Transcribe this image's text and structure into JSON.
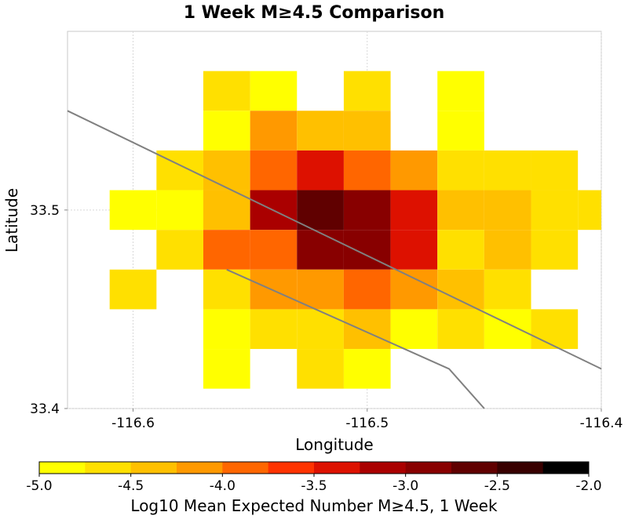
{
  "chart_data": {
    "type": "heatmap",
    "title": "1 Week M≥4.5 Comparison",
    "xlabel": "Longitude",
    "ylabel": "Latitude",
    "xlim": [
      -116.628,
      -116.4
    ],
    "ylim": [
      33.4,
      33.59
    ],
    "x_ticks": [
      {
        "value": -116.6,
        "label": "-116.6"
      },
      {
        "value": -116.5,
        "label": "-116.5"
      },
      {
        "value": -116.4,
        "label": "-116.4"
      }
    ],
    "y_ticks": [
      {
        "value": 33.5,
        "label": "33.5"
      },
      {
        "value": 33.4,
        "label": "33.4"
      }
    ],
    "grid": true,
    "cell_size": 0.02,
    "cells": [
      {
        "lon": -116.56,
        "lat": 33.56,
        "value": -4.6
      },
      {
        "lon": -116.54,
        "lat": 33.56,
        "value": -4.9
      },
      {
        "lon": -116.5,
        "lat": 33.56,
        "value": -4.6
      },
      {
        "lon": -116.46,
        "lat": 33.56,
        "value": -4.9
      },
      {
        "lon": -116.56,
        "lat": 33.54,
        "value": -4.9
      },
      {
        "lon": -116.54,
        "lat": 33.54,
        "value": -4.2
      },
      {
        "lon": -116.52,
        "lat": 33.54,
        "value": -4.4
      },
      {
        "lon": -116.5,
        "lat": 33.54,
        "value": -4.4
      },
      {
        "lon": -116.46,
        "lat": 33.54,
        "value": -4.9
      },
      {
        "lon": -116.58,
        "lat": 33.52,
        "value": -4.6
      },
      {
        "lon": -116.56,
        "lat": 33.52,
        "value": -4.4
      },
      {
        "lon": -116.54,
        "lat": 33.52,
        "value": -3.8
      },
      {
        "lon": -116.52,
        "lat": 33.52,
        "value": -3.4
      },
      {
        "lon": -116.5,
        "lat": 33.52,
        "value": -3.8
      },
      {
        "lon": -116.48,
        "lat": 33.52,
        "value": -4.2
      },
      {
        "lon": -116.46,
        "lat": 33.52,
        "value": -4.6
      },
      {
        "lon": -116.44,
        "lat": 33.52,
        "value": -4.6
      },
      {
        "lon": -116.42,
        "lat": 33.52,
        "value": -4.6
      },
      {
        "lon": -116.6,
        "lat": 33.5,
        "value": -4.9
      },
      {
        "lon": -116.58,
        "lat": 33.5,
        "value": -4.9
      },
      {
        "lon": -116.56,
        "lat": 33.5,
        "value": -4.4
      },
      {
        "lon": -116.54,
        "lat": 33.5,
        "value": -3.2
      },
      {
        "lon": -116.52,
        "lat": 33.5,
        "value": -2.6
      },
      {
        "lon": -116.5,
        "lat": 33.5,
        "value": -2.8
      },
      {
        "lon": -116.48,
        "lat": 33.5,
        "value": -3.4
      },
      {
        "lon": -116.46,
        "lat": 33.5,
        "value": -4.4
      },
      {
        "lon": -116.44,
        "lat": 33.5,
        "value": -4.4
      },
      {
        "lon": -116.42,
        "lat": 33.5,
        "value": -4.6
      },
      {
        "lon": -116.4,
        "lat": 33.5,
        "value": -4.6
      },
      {
        "lon": -116.58,
        "lat": 33.48,
        "value": -4.6
      },
      {
        "lon": -116.56,
        "lat": 33.48,
        "value": -3.8
      },
      {
        "lon": -116.54,
        "lat": 33.48,
        "value": -3.8
      },
      {
        "lon": -116.52,
        "lat": 33.48,
        "value": -3.0
      },
      {
        "lon": -116.5,
        "lat": 33.48,
        "value": -2.8
      },
      {
        "lon": -116.48,
        "lat": 33.48,
        "value": -3.4
      },
      {
        "lon": -116.46,
        "lat": 33.48,
        "value": -4.6
      },
      {
        "lon": -116.44,
        "lat": 33.48,
        "value": -4.4
      },
      {
        "lon": -116.42,
        "lat": 33.48,
        "value": -4.6
      },
      {
        "lon": -116.6,
        "lat": 33.46,
        "value": -4.6
      },
      {
        "lon": -116.56,
        "lat": 33.46,
        "value": -4.6
      },
      {
        "lon": -116.54,
        "lat": 33.46,
        "value": -4.2
      },
      {
        "lon": -116.52,
        "lat": 33.46,
        "value": -4.2
      },
      {
        "lon": -116.5,
        "lat": 33.46,
        "value": -3.8
      },
      {
        "lon": -116.48,
        "lat": 33.46,
        "value": -4.2
      },
      {
        "lon": -116.46,
        "lat": 33.46,
        "value": -4.4
      },
      {
        "lon": -116.44,
        "lat": 33.46,
        "value": -4.6
      },
      {
        "lon": -116.56,
        "lat": 33.44,
        "value": -4.9
      },
      {
        "lon": -116.54,
        "lat": 33.44,
        "value": -4.6
      },
      {
        "lon": -116.52,
        "lat": 33.44,
        "value": -4.6
      },
      {
        "lon": -116.5,
        "lat": 33.44,
        "value": -4.4
      },
      {
        "lon": -116.48,
        "lat": 33.44,
        "value": -4.9
      },
      {
        "lon": -116.46,
        "lat": 33.44,
        "value": -4.6
      },
      {
        "lon": -116.44,
        "lat": 33.44,
        "value": -4.9
      },
      {
        "lon": -116.42,
        "lat": 33.44,
        "value": -4.6
      },
      {
        "lon": -116.56,
        "lat": 33.42,
        "value": -4.9
      },
      {
        "lon": -116.52,
        "lat": 33.42,
        "value": -4.6
      },
      {
        "lon": -116.5,
        "lat": 33.42,
        "value": -4.9
      }
    ],
    "fault_lines": [
      {
        "name": "",
        "color": "#808080",
        "points": [
          [
            -116.628,
            33.55
          ],
          [
            -116.4,
            33.42
          ]
        ]
      },
      {
        "name": "",
        "color": "#808080",
        "points": [
          [
            -116.56,
            33.47
          ],
          [
            -116.465,
            33.42
          ],
          [
            -116.45,
            33.4
          ]
        ]
      }
    ],
    "colorbar": {
      "label": "Log10 Mean Expected Number M≥4.5, 1 Week",
      "min": -5.0,
      "max": -2.0,
      "ticks": [
        "-5.0",
        "-4.5",
        "-4.0",
        "-3.5",
        "-3.0",
        "-2.5",
        "-2.0"
      ],
      "colors": [
        "#ffff00",
        "#ffe000",
        "#ffc000",
        "#ff9900",
        "#ff6600",
        "#ff3300",
        "#dd1100",
        "#aa0000",
        "#880000",
        "#600000",
        "#380000",
        "#000000"
      ]
    }
  }
}
